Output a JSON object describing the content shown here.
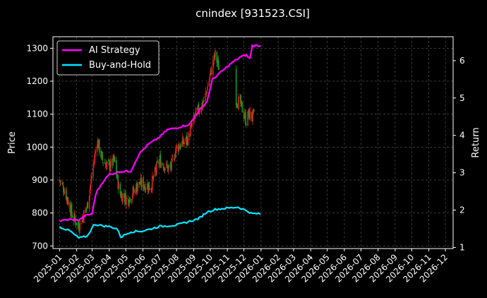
{
  "chart_data": {
    "type": "line",
    "title": "cnindex [931523.CSI]",
    "xlabel": "",
    "ylabel_left": "Price",
    "ylabel_right": "Return",
    "x_range": [
      "2024-12-20",
      "2026-12-15"
    ],
    "x_ticks": [
      "2025-01-01",
      "2025-02-01",
      "2025-03-01",
      "2025-04-01",
      "2025-05-01",
      "2025-06-01",
      "2025-07-01",
      "2025-08-01",
      "2025-09-01",
      "2025-10-01",
      "2025-11-01",
      "2025-12-01",
      "2026-01-01",
      "2026-02-01",
      "2026-03-01",
      "2026-04-01",
      "2026-05-01",
      "2026-06-01",
      "2026-07-01",
      "2026-08-01",
      "2026-09-01",
      "2026-10-01",
      "2026-11-01",
      "2026-12-01"
    ],
    "x_tick_labels": [
      "2025-01",
      "2025-02",
      "2025-03",
      "2025-04",
      "2025-05",
      "2025-06",
      "2025-07",
      "2025-08",
      "2025-09",
      "2025-10",
      "2025-11",
      "2025-12",
      "2026-01",
      "2026-02",
      "2026-03",
      "2026-04",
      "2026-05",
      "2026-06",
      "2026-07",
      "2026-08",
      "2026-09",
      "2026-10",
      "2026-11",
      "2026-12"
    ],
    "y_left_range": [
      692,
      1335
    ],
    "y_left_ticks": [
      700,
      800,
      900,
      1000,
      1100,
      1200,
      1300
    ],
    "y_right_range": [
      0.97,
      6.64
    ],
    "y_right_ticks": [
      1,
      2,
      3,
      4,
      5,
      6
    ],
    "grid": true,
    "legend_position": "top-left",
    "colors": {
      "background": "#000000",
      "ai_strategy": "#ff00ff",
      "buy_and_hold": "#00e5ff",
      "candle_up": "#e02020",
      "candle_down": "#1a9a1a",
      "grid": "#5a5a5a"
    },
    "series": [
      {
        "name": "AI Strategy",
        "axis": "right",
        "points": [
          [
            "2025-01-01",
            1.71
          ],
          [
            "2025-01-20",
            1.75
          ],
          [
            "2025-02-05",
            1.73
          ],
          [
            "2025-02-15",
            1.84
          ],
          [
            "2025-03-01",
            1.9
          ],
          [
            "2025-03-08",
            2.45
          ],
          [
            "2025-03-20",
            2.75
          ],
          [
            "2025-04-01",
            2.95
          ],
          [
            "2025-04-20",
            3.03
          ],
          [
            "2025-05-10",
            3.04
          ],
          [
            "2025-05-25",
            3.5
          ],
          [
            "2025-06-10",
            3.75
          ],
          [
            "2025-07-01",
            3.95
          ],
          [
            "2025-07-15",
            4.15
          ],
          [
            "2025-08-01",
            4.2
          ],
          [
            "2025-08-25",
            4.3
          ],
          [
            "2025-09-10",
            4.65
          ],
          [
            "2025-09-25",
            4.9
          ],
          [
            "2025-10-05",
            5.5
          ],
          [
            "2025-10-25",
            5.75
          ],
          [
            "2025-11-10",
            5.95
          ],
          [
            "2025-11-25",
            6.1
          ],
          [
            "2025-12-05",
            6.15
          ],
          [
            "2025-12-12",
            6.05
          ],
          [
            "2025-12-16",
            6.4
          ],
          [
            "2025-12-31",
            6.4
          ]
        ]
      },
      {
        "name": "Buy-and-Hold",
        "axis": "right",
        "points": [
          [
            "2025-01-01",
            1.55
          ],
          [
            "2025-01-20",
            1.44
          ],
          [
            "2025-02-05",
            1.25
          ],
          [
            "2025-02-20",
            1.3
          ],
          [
            "2025-03-05",
            1.62
          ],
          [
            "2025-03-20",
            1.58
          ],
          [
            "2025-04-01",
            1.56
          ],
          [
            "2025-04-15",
            1.5
          ],
          [
            "2025-04-22",
            1.28
          ],
          [
            "2025-05-10",
            1.42
          ],
          [
            "2025-06-01",
            1.44
          ],
          [
            "2025-07-01",
            1.56
          ],
          [
            "2025-08-01",
            1.6
          ],
          [
            "2025-08-25",
            1.7
          ],
          [
            "2025-09-10",
            1.77
          ],
          [
            "2025-09-25",
            1.95
          ],
          [
            "2025-10-10",
            2.02
          ],
          [
            "2025-10-30",
            2.05
          ],
          [
            "2025-11-20",
            2.08
          ],
          [
            "2025-12-05",
            1.99
          ],
          [
            "2025-12-15",
            1.91
          ],
          [
            "2025-12-31",
            1.9
          ]
        ]
      }
    ],
    "candlesticks": {
      "axis": "left",
      "approx_close_path": [
        [
          "2025-01-01",
          900
        ],
        [
          "2025-01-10",
          870
        ],
        [
          "2025-01-25",
          790
        ],
        [
          "2025-02-05",
          760
        ],
        [
          "2025-02-20",
          820
        ],
        [
          "2025-03-01",
          920
        ],
        [
          "2025-03-10",
          1020
        ],
        [
          "2025-03-20",
          960
        ],
        [
          "2025-04-01",
          940
        ],
        [
          "2025-04-10",
          960
        ],
        [
          "2025-04-20",
          860
        ],
        [
          "2025-05-05",
          840
        ],
        [
          "2025-05-25",
          890
        ],
        [
          "2025-06-15",
          880
        ],
        [
          "2025-07-01",
          960
        ],
        [
          "2025-07-20",
          930
        ],
        [
          "2025-08-01",
          1000
        ],
        [
          "2025-08-20",
          1020
        ],
        [
          "2025-09-05",
          1100
        ],
        [
          "2025-09-20",
          1140
        ],
        [
          "2025-10-01",
          1220
        ],
        [
          "2025-10-10",
          1280
        ],
        [
          "2025-10-20",
          1220
        ],
        [
          "2025-11-01",
          1200
        ],
        [
          "2025-11-15",
          1150
        ],
        [
          "2025-11-25",
          1130
        ],
        [
          "2025-12-05",
          1080
        ],
        [
          "2025-12-10",
          1100
        ],
        [
          "2025-12-20",
          1090
        ]
      ]
    },
    "legend": [
      "AI Strategy",
      "Buy-and-Hold"
    ]
  }
}
